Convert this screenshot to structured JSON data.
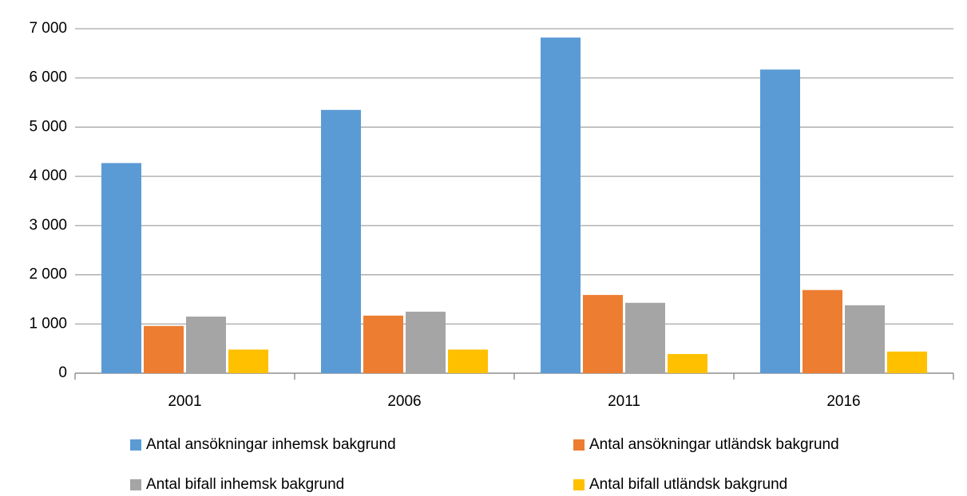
{
  "chart_data": {
    "type": "bar",
    "categories": [
      "2001",
      "2006",
      "2011",
      "2016"
    ],
    "series": [
      {
        "name": "Antal ansökningar inhemsk bakgrund",
        "color": "#5b9bd5",
        "values": [
          4270,
          5350,
          6820,
          6170
        ]
      },
      {
        "name": "Antal ansökningar utländsk bakgrund",
        "color": "#ed7d31",
        "values": [
          960,
          1170,
          1590,
          1690
        ]
      },
      {
        "name": "Antal bifall inhemsk bakgrund",
        "color": "#a5a5a5",
        "values": [
          1150,
          1250,
          1430,
          1380
        ]
      },
      {
        "name": "Antal bifall utländsk bakgrund",
        "color": "#ffc000",
        "values": [
          480,
          480,
          390,
          440
        ]
      }
    ],
    "ylim": [
      0,
      7000
    ],
    "yticks": [
      0,
      {
        "value": 1000,
        "label": "1 000"
      },
      {
        "value": 2000,
        "label": "2 000"
      },
      {
        "value": 3000,
        "label": "3 000"
      },
      {
        "value": 4000,
        "label": "4 000"
      },
      {
        "value": 5000,
        "label": "5 000"
      },
      {
        "value": 6000,
        "label": "6 000"
      },
      {
        "value": 7000,
        "label": "7 000"
      }
    ],
    "grid": true,
    "legend": "bottom"
  }
}
